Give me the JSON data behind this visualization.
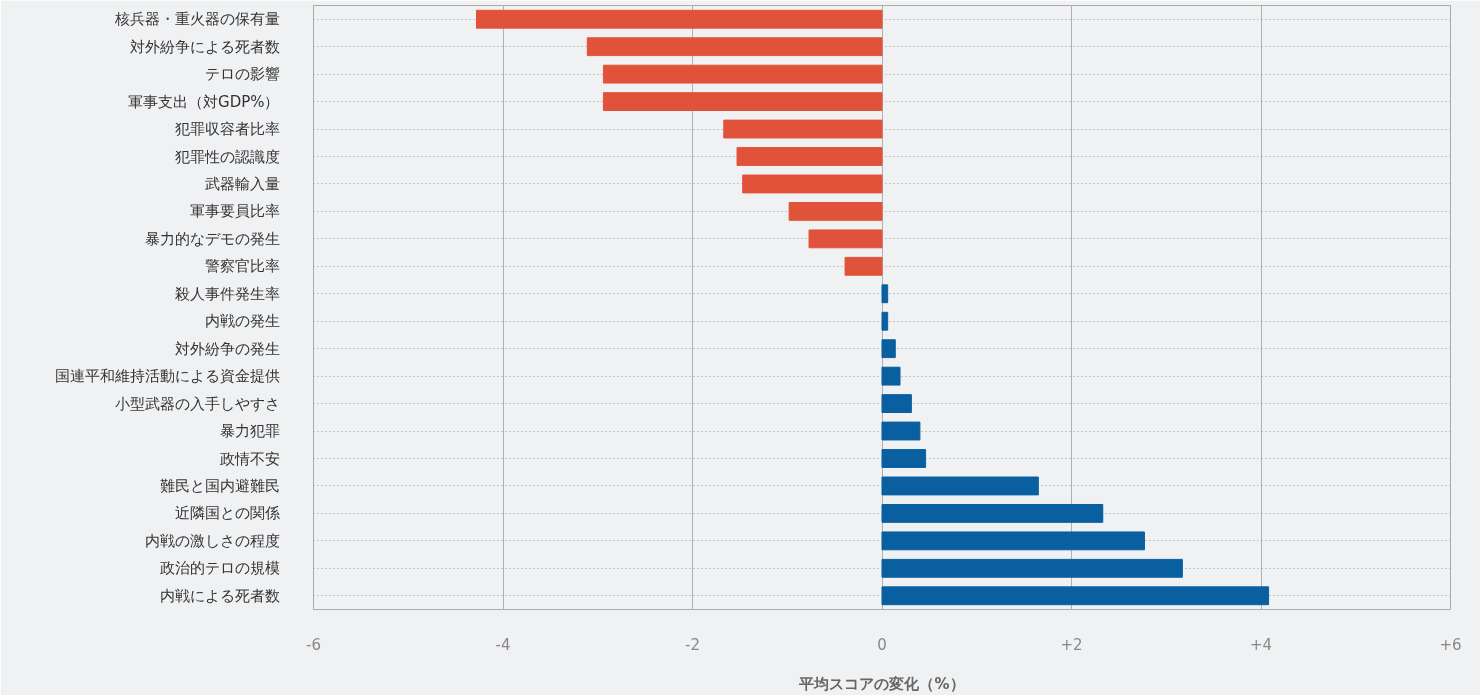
{
  "chart_data": {
    "type": "bar",
    "orientation": "horizontal",
    "xlabel": "平均スコアの変化（%）",
    "categories": [
      "核兵器・重火器の保有量",
      "対外紛争による死者数",
      "テロの影響",
      "軍事支出（対GDP%）",
      "犯罪収容者比率",
      "犯罪性の認識度",
      "武器輸入量",
      "軍事要員比率",
      "暴力的なデモの発生",
      "警察官比率",
      "殺人事件発生率",
      "内戦の発生",
      "対外紛争の発生",
      "国連平和維持活動による資金提供",
      "小型武器の入手しやすさ",
      "暴力犯罪",
      "政情不安",
      "難民と国内避難民",
      "近隣国との関係",
      "内戦の激しさの程度",
      "政治的テロの規模",
      "内戦による死者数"
    ],
    "values": [
      -4.28,
      -3.11,
      -2.94,
      -2.94,
      -1.67,
      -1.53,
      -1.47,
      -0.98,
      -0.77,
      -0.39,
      0.06,
      0.06,
      0.14,
      0.19,
      0.31,
      0.4,
      0.46,
      1.65,
      2.33,
      2.77,
      3.17,
      4.08
    ],
    "colors": [
      "#e0533a",
      "#e0533a",
      "#e0533a",
      "#e0533a",
      "#e0533a",
      "#e0533a",
      "#e0533a",
      "#e0533a",
      "#e0533a",
      "#e0533a",
      "#0a5fa0",
      "#0a5fa0",
      "#0a5fa0",
      "#0a5fa0",
      "#0a5fa0",
      "#0a5fa0",
      "#0a5fa0",
      "#0a5fa0",
      "#0a5fa0",
      "#0a5fa0",
      "#0a5fa0",
      "#0a5fa0"
    ],
    "xlim": [
      -6,
      6
    ],
    "xticks": [
      -6,
      -4,
      -2,
      0,
      {
        "value": 2,
        "label": "+2"
      },
      {
        "value": 4,
        "label": "+4"
      },
      {
        "value": 6,
        "label": "+6"
      }
    ],
    "grid": true
  }
}
